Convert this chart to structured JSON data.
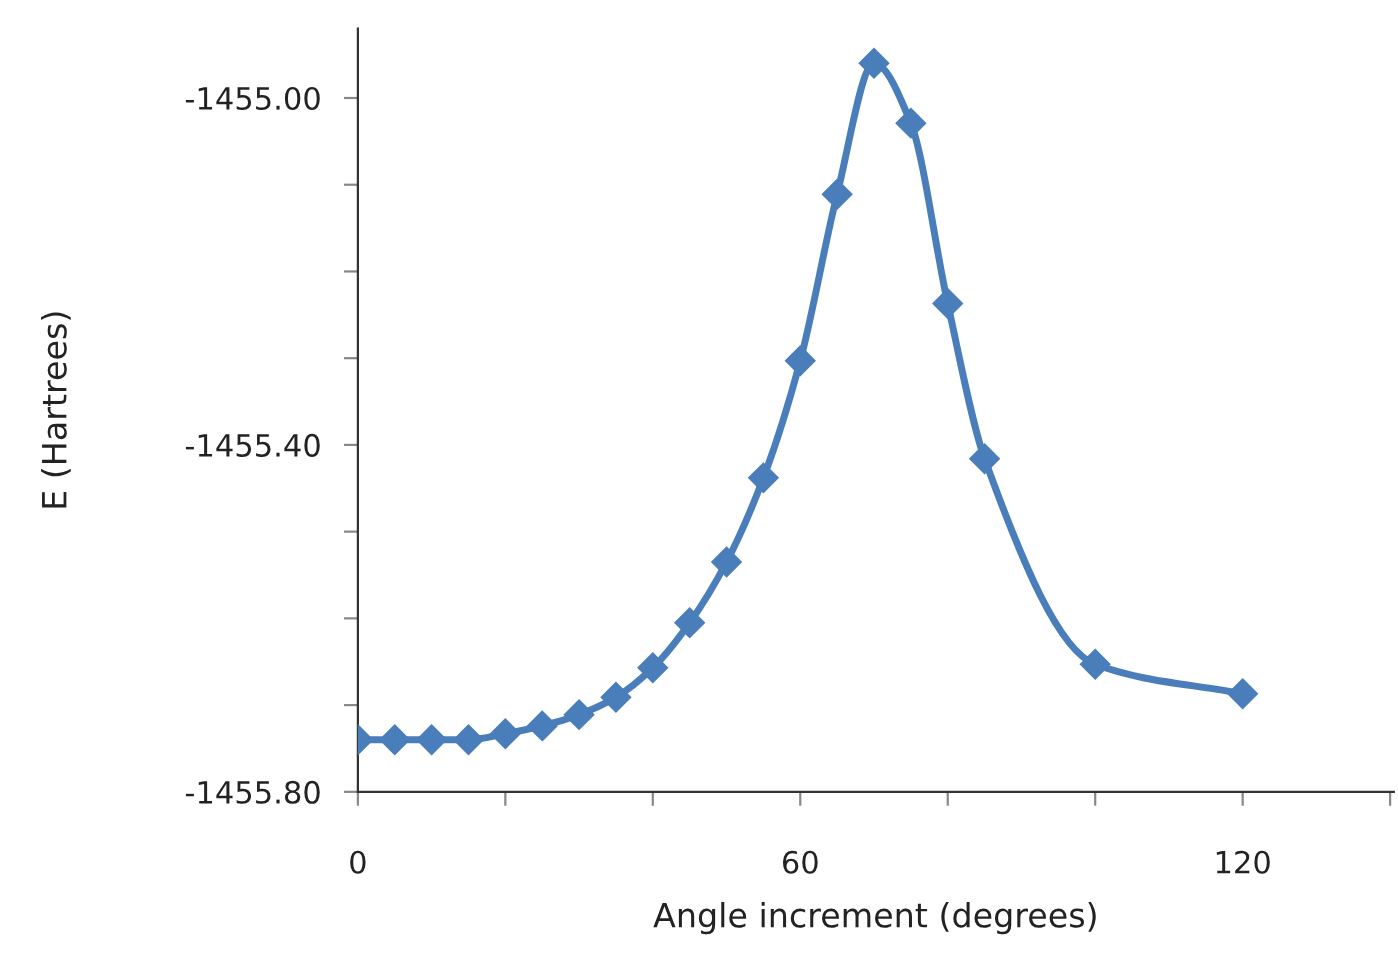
{
  "chart_data": {
    "type": "line",
    "xlabel": "Angle increment (degrees)",
    "ylabel": "E (Hartrees)",
    "x": [
      0,
      5,
      10,
      15,
      20,
      25,
      30,
      35,
      40,
      45,
      50,
      55,
      60,
      65,
      70,
      75,
      80,
      85,
      100,
      120
    ],
    "series": [
      {
        "color": "#4a7ebb",
        "values": [
          -1455.74,
          -1455.74,
          -1455.74,
          -1455.74,
          -1455.733,
          -1455.724,
          -1455.711,
          -1455.691,
          -1455.657,
          -1455.605,
          -1455.535,
          -1455.438,
          -1455.303,
          -1455.111,
          -1454.96,
          -1455.029,
          -1455.237,
          -1455.416,
          -1455.653,
          -1455.687
        ]
      }
    ],
    "xlim": [
      0,
      140.5
    ],
    "ylim": [
      -1455.8,
      -1454.92
    ],
    "xticks": [
      0,
      {
        "value": 20,
        "label": null
      },
      {
        "value": 40,
        "label": null
      },
      60,
      {
        "value": 80,
        "label": null
      },
      {
        "value": 100,
        "label": null
      },
      120,
      {
        "value": 140,
        "label": null
      }
    ],
    "yticks": [
      {
        "value": -1455.8,
        "label": "-1455.80"
      },
      {
        "value": -1455.7,
        "label": null
      },
      {
        "value": -1455.6,
        "label": null
      },
      {
        "value": -1455.5,
        "label": null
      },
      {
        "value": -1455.4,
        "label": "-1455.40"
      },
      {
        "value": -1455.3,
        "label": null
      },
      {
        "value": -1455.2,
        "label": null
      },
      {
        "value": -1455.1,
        "label": null
      },
      {
        "value": -1455.0,
        "label": "-1455.00"
      }
    ],
    "grid": false,
    "legend": false,
    "marker": "diamond",
    "line_style": "solid"
  }
}
